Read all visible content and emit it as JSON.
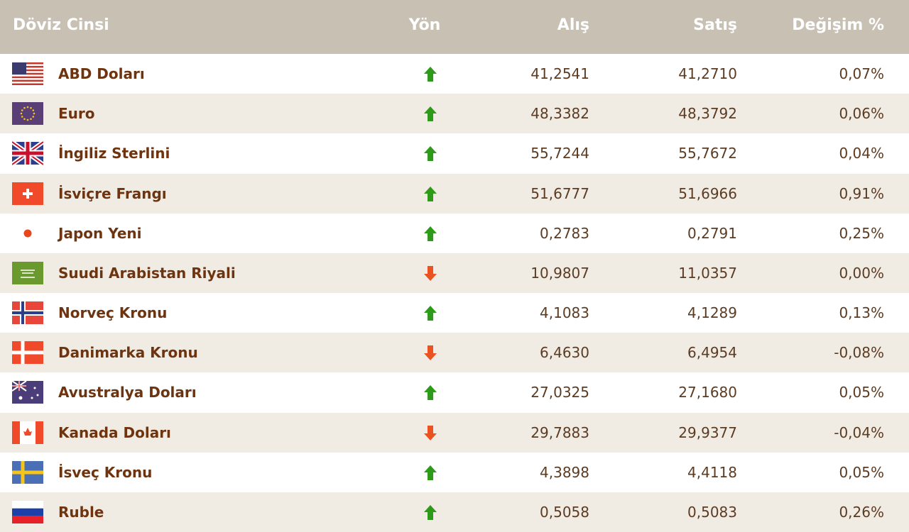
{
  "table": {
    "columns": [
      "Döviz Cinsi",
      "Yön",
      "Alış",
      "Satış",
      "Değişim %"
    ],
    "rows": [
      {
        "name": "ABD Doları",
        "direction": "up",
        "buy": "41,2541",
        "sell": "41,2710",
        "change": "0,07%"
      },
      {
        "name": "Euro",
        "direction": "up",
        "buy": "48,3382",
        "sell": "48,3792",
        "change": "0,06%"
      },
      {
        "name": "İngiliz Sterlini",
        "direction": "up",
        "buy": "55,7244",
        "sell": "55,7672",
        "change": "0,04%"
      },
      {
        "name": "İsviçre Frangı",
        "direction": "up",
        "buy": "51,6777",
        "sell": "51,6966",
        "change": "0,91%"
      },
      {
        "name": "Japon Yeni",
        "direction": "up",
        "buy": "0,2783",
        "sell": "0,2791",
        "change": "0,25%"
      },
      {
        "name": "Suudi Arabistan Riyali",
        "direction": "down",
        "buy": "10,9807",
        "sell": "11,0357",
        "change": "0,00%"
      },
      {
        "name": "Norveç Kronu",
        "direction": "up",
        "buy": "4,1083",
        "sell": "4,1289",
        "change": "0,13%"
      },
      {
        "name": "Danimarka Kronu",
        "direction": "down",
        "buy": "6,4630",
        "sell": "6,4954",
        "change": "-0,08%"
      },
      {
        "name": "Avustralya Doları",
        "direction": "up",
        "buy": "27,0325",
        "sell": "27,1680",
        "change": "0,05%"
      },
      {
        "name": "Kanada Doları",
        "direction": "down",
        "buy": "29,7883",
        "sell": "29,9377",
        "change": "-0,04%"
      },
      {
        "name": "İsveç Kronu",
        "direction": "up",
        "buy": "4,3898",
        "sell": "4,4118",
        "change": "0,05%"
      },
      {
        "name": "Ruble",
        "direction": "up",
        "buy": "0,5058",
        "sell": "0,5083",
        "change": "0,26%"
      }
    ]
  }
}
